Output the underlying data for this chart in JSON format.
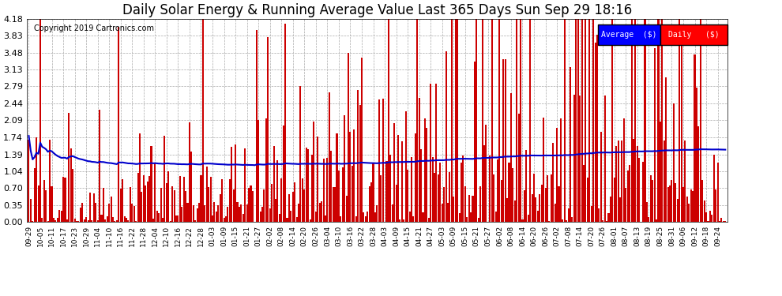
{
  "title": "Daily Solar Energy & Running Average Value Last 365 Days Sun Sep 29 18:16",
  "copyright": "Copyright 2019 Cartronics.com",
  "legend_labels": [
    "Average  ($)",
    "Daily   ($)"
  ],
  "legend_colors": [
    "blue",
    "red"
  ],
  "yticks": [
    0.0,
    0.35,
    0.7,
    1.04,
    1.39,
    1.74,
    2.09,
    2.44,
    2.79,
    3.13,
    3.48,
    3.83,
    4.18
  ],
  "ylim": [
    0.0,
    4.18
  ],
  "background_color": "#ffffff",
  "bar_color": "#cc0000",
  "avg_line_color": "#0000cc",
  "grid_color": "#aaaaaa",
  "title_fontsize": 12,
  "n_days": 365
}
